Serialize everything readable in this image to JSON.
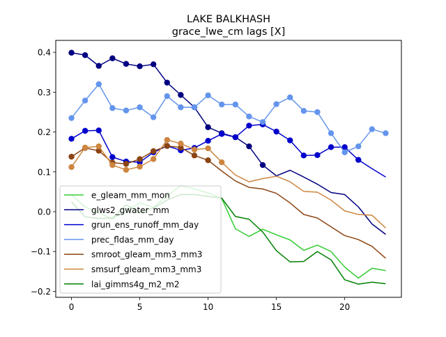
{
  "chart_data": {
    "type": "line",
    "title": "LAKE BALKHASH",
    "subtitle": "grace_lwe_cm lags [X]",
    "xlabel": "",
    "ylabel": "",
    "xlim": [
      -1.15,
      24.15
    ],
    "ylim": [
      -0.215,
      0.43
    ],
    "xticks": [
      0,
      5,
      10,
      15,
      20
    ],
    "yticks": [
      -0.2,
      -0.1,
      0.0,
      0.1,
      0.2,
      0.3,
      0.4
    ],
    "ytick_labels": [
      "−0.2",
      "−0.1",
      "0.0",
      "0.1",
      "0.2",
      "0.3",
      "0.4"
    ],
    "grid": false,
    "legend_position": "lower-left",
    "x": [
      0,
      1,
      2,
      3,
      4,
      5,
      6,
      7,
      8,
      9,
      10,
      11,
      12,
      13,
      14,
      15,
      16,
      17,
      18,
      19,
      20,
      21,
      22,
      23
    ],
    "series": [
      {
        "name": "e_gleam_mm_mon",
        "color": "#32cd32",
        "values": [
          0.042,
          0.012,
          -0.003,
          -0.018,
          0.003,
          0.022,
          0.011,
          0.04,
          0.065,
          0.057,
          0.047,
          0.033,
          -0.043,
          -0.062,
          -0.044,
          -0.058,
          -0.071,
          -0.097,
          -0.084,
          -0.1,
          -0.139,
          -0.167,
          -0.142,
          -0.148
        ],
        "markers": [
          false,
          false,
          false,
          false,
          false,
          false,
          false,
          false,
          false,
          false,
          false,
          false,
          false,
          false,
          false,
          false,
          false,
          false,
          false,
          false,
          false,
          false,
          false,
          false
        ]
      },
      {
        "name": "glws2_gwater_mm",
        "color": "#000080",
        "values": [
          0.399,
          0.393,
          0.366,
          0.385,
          0.371,
          0.365,
          0.37,
          0.324,
          0.293,
          0.262,
          0.212,
          0.197,
          0.187,
          0.164,
          0.117,
          0.09,
          0.104,
          0.087,
          0.069,
          0.048,
          0.043,
          0.012,
          -0.031,
          -0.057
        ],
        "markers": [
          true,
          true,
          true,
          true,
          true,
          true,
          true,
          true,
          true,
          true,
          true,
          true,
          true,
          true,
          true,
          false,
          false,
          false,
          false,
          false,
          false,
          false,
          false,
          false
        ]
      },
      {
        "name": "grun_ens_runoff_mm_day",
        "color": "#0000cd",
        "values": [
          0.183,
          0.203,
          0.204,
          0.137,
          0.126,
          0.124,
          0.149,
          0.165,
          0.154,
          0.16,
          0.178,
          0.195,
          0.187,
          0.216,
          0.219,
          0.201,
          0.179,
          0.141,
          0.142,
          0.162,
          0.162,
          0.13,
          0.108,
          0.087
        ],
        "markers": [
          true,
          true,
          true,
          true,
          true,
          true,
          true,
          true,
          true,
          true,
          true,
          true,
          true,
          true,
          true,
          true,
          true,
          true,
          true,
          true,
          true,
          true,
          false,
          false
        ]
      },
      {
        "name": "prec_fldas_mm_day",
        "color": "#6495ed",
        "values": [
          0.235,
          0.279,
          0.32,
          0.26,
          0.254,
          0.262,
          0.237,
          0.29,
          0.262,
          0.262,
          0.292,
          0.269,
          0.269,
          0.239,
          0.225,
          0.27,
          0.287,
          0.253,
          0.25,
          0.197,
          0.149,
          0.164,
          0.207,
          0.197
        ],
        "markers": [
          true,
          true,
          true,
          true,
          true,
          true,
          true,
          true,
          true,
          true,
          true,
          true,
          true,
          true,
          true,
          true,
          true,
          true,
          true,
          true,
          true,
          true,
          true,
          true
        ]
      },
      {
        "name": "smroot_gleam_mm3_mm3",
        "color": "#8b4513",
        "values": [
          0.138,
          0.16,
          0.153,
          0.123,
          0.12,
          0.132,
          0.152,
          0.165,
          0.161,
          0.141,
          0.129,
          0.102,
          0.077,
          0.061,
          0.057,
          0.046,
          0.022,
          -0.007,
          -0.016,
          -0.038,
          -0.06,
          -0.07,
          -0.087,
          -0.117
        ],
        "markers": [
          true,
          true,
          true,
          true,
          true,
          true,
          true,
          true,
          true,
          true,
          true,
          false,
          false,
          false,
          false,
          false,
          false,
          false,
          false,
          false,
          false,
          false,
          false,
          false
        ]
      },
      {
        "name": "smsurf_gleam_mm3_mm3",
        "color": "#cd853f",
        "values": [
          0.112,
          0.161,
          0.164,
          0.117,
          0.105,
          0.113,
          0.132,
          0.18,
          0.171,
          0.156,
          0.159,
          0.124,
          0.092,
          0.075,
          0.083,
          0.089,
          0.075,
          0.051,
          0.049,
          0.029,
          0.002,
          -0.007,
          -0.009,
          -0.041
        ],
        "markers": [
          true,
          true,
          true,
          true,
          true,
          true,
          true,
          true,
          true,
          true,
          true,
          true,
          false,
          false,
          false,
          false,
          false,
          false,
          false,
          false,
          false,
          false,
          false,
          false
        ]
      },
      {
        "name": "lai_gimms4g_m2_m2",
        "color": "#008000",
        "values": [
          0.025,
          -0.013,
          -0.017,
          -0.016,
          0.017,
          -0.001,
          0.009,
          0.029,
          0.043,
          0.043,
          0.038,
          0.034,
          -0.012,
          -0.019,
          -0.051,
          -0.098,
          -0.126,
          -0.125,
          -0.1,
          -0.121,
          -0.171,
          -0.182,
          -0.177,
          -0.181
        ],
        "markers": [
          false,
          false,
          false,
          false,
          false,
          false,
          false,
          false,
          false,
          false,
          false,
          false,
          false,
          false,
          false,
          false,
          false,
          false,
          false,
          false,
          false,
          false,
          false,
          false
        ]
      }
    ]
  }
}
